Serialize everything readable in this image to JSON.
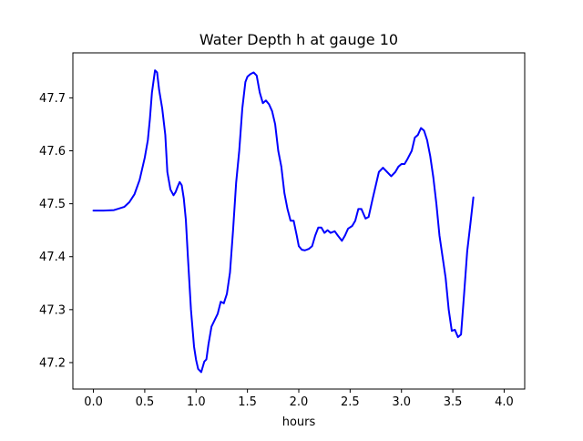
{
  "chart_data": {
    "type": "line",
    "title": "Water Depth h at gauge 10",
    "xlabel": "hours",
    "ylabel": "",
    "xlim": [
      -0.2,
      4.2
    ],
    "ylim": [
      47.15,
      47.785
    ],
    "x_ticks": [
      0.0,
      0.5,
      1.0,
      1.5,
      2.0,
      2.5,
      3.0,
      3.5,
      4.0
    ],
    "x_tick_labels": [
      "0.0",
      "0.5",
      "1.0",
      "1.5",
      "2.0",
      "2.5",
      "3.0",
      "3.5",
      "4.0"
    ],
    "y_ticks": [
      47.2,
      47.3,
      47.4,
      47.5,
      47.6,
      47.7
    ],
    "y_tick_labels": [
      "47.2",
      "47.3",
      "47.4",
      "47.5",
      "47.6",
      "47.7"
    ],
    "grid": false,
    "series": [
      {
        "color": "#0000ff",
        "points": [
          [
            0.0,
            47.487
          ],
          [
            0.1,
            47.487
          ],
          [
            0.2,
            47.488
          ],
          [
            0.3,
            47.494
          ],
          [
            0.35,
            47.503
          ],
          [
            0.4,
            47.518
          ],
          [
            0.45,
            47.545
          ],
          [
            0.5,
            47.587
          ],
          [
            0.53,
            47.62
          ],
          [
            0.55,
            47.66
          ],
          [
            0.57,
            47.71
          ],
          [
            0.6,
            47.752
          ],
          [
            0.62,
            47.748
          ],
          [
            0.64,
            47.715
          ],
          [
            0.67,
            47.68
          ],
          [
            0.7,
            47.63
          ],
          [
            0.72,
            47.56
          ],
          [
            0.75,
            47.527
          ],
          [
            0.78,
            47.516
          ],
          [
            0.8,
            47.522
          ],
          [
            0.82,
            47.532
          ],
          [
            0.84,
            47.541
          ],
          [
            0.86,
            47.535
          ],
          [
            0.88,
            47.51
          ],
          [
            0.9,
            47.47
          ],
          [
            0.92,
            47.4
          ],
          [
            0.95,
            47.3
          ],
          [
            0.98,
            47.23
          ],
          [
            1.0,
            47.205
          ],
          [
            1.02,
            47.188
          ],
          [
            1.05,
            47.182
          ],
          [
            1.08,
            47.202
          ],
          [
            1.1,
            47.206
          ],
          [
            1.12,
            47.234
          ],
          [
            1.15,
            47.268
          ],
          [
            1.18,
            47.28
          ],
          [
            1.21,
            47.292
          ],
          [
            1.24,
            47.315
          ],
          [
            1.27,
            47.312
          ],
          [
            1.3,
            47.33
          ],
          [
            1.33,
            47.37
          ],
          [
            1.36,
            47.45
          ],
          [
            1.39,
            47.54
          ],
          [
            1.42,
            47.6
          ],
          [
            1.45,
            47.68
          ],
          [
            1.48,
            47.73
          ],
          [
            1.5,
            47.74
          ],
          [
            1.53,
            47.745
          ],
          [
            1.56,
            47.748
          ],
          [
            1.59,
            47.742
          ],
          [
            1.62,
            47.71
          ],
          [
            1.65,
            47.69
          ],
          [
            1.68,
            47.695
          ],
          [
            1.71,
            47.688
          ],
          [
            1.74,
            47.675
          ],
          [
            1.77,
            47.65
          ],
          [
            1.8,
            47.6
          ],
          [
            1.83,
            47.57
          ],
          [
            1.86,
            47.52
          ],
          [
            1.89,
            47.49
          ],
          [
            1.92,
            47.468
          ],
          [
            1.95,
            47.468
          ],
          [
            1.98,
            47.44
          ],
          [
            2.0,
            47.42
          ],
          [
            2.03,
            47.413
          ],
          [
            2.06,
            47.412
          ],
          [
            2.1,
            47.415
          ],
          [
            2.13,
            47.42
          ],
          [
            2.16,
            47.44
          ],
          [
            2.19,
            47.455
          ],
          [
            2.22,
            47.455
          ],
          [
            2.25,
            47.445
          ],
          [
            2.28,
            47.45
          ],
          [
            2.31,
            47.445
          ],
          [
            2.35,
            47.448
          ],
          [
            2.38,
            47.44
          ],
          [
            2.42,
            47.43
          ],
          [
            2.45,
            47.44
          ],
          [
            2.48,
            47.453
          ],
          [
            2.52,
            47.458
          ],
          [
            2.55,
            47.468
          ],
          [
            2.58,
            47.49
          ],
          [
            2.61,
            47.49
          ],
          [
            2.65,
            47.472
          ],
          [
            2.68,
            47.475
          ],
          [
            2.72,
            47.51
          ],
          [
            2.75,
            47.535
          ],
          [
            2.78,
            47.56
          ],
          [
            2.82,
            47.568
          ],
          [
            2.86,
            47.56
          ],
          [
            2.9,
            47.552
          ],
          [
            2.94,
            47.56
          ],
          [
            2.97,
            47.57
          ],
          [
            3.0,
            47.575
          ],
          [
            3.03,
            47.575
          ],
          [
            3.06,
            47.585
          ],
          [
            3.1,
            47.6
          ],
          [
            3.13,
            47.625
          ],
          [
            3.16,
            47.63
          ],
          [
            3.19,
            47.643
          ],
          [
            3.22,
            47.638
          ],
          [
            3.25,
            47.62
          ],
          [
            3.28,
            47.59
          ],
          [
            3.31,
            47.55
          ],
          [
            3.34,
            47.5
          ],
          [
            3.37,
            47.44
          ],
          [
            3.4,
            47.4
          ],
          [
            3.43,
            47.36
          ],
          [
            3.46,
            47.3
          ],
          [
            3.49,
            47.26
          ],
          [
            3.52,
            47.262
          ],
          [
            3.55,
            47.248
          ],
          [
            3.58,
            47.253
          ],
          [
            3.61,
            47.33
          ],
          [
            3.64,
            47.41
          ],
          [
            3.67,
            47.46
          ],
          [
            3.7,
            47.512
          ]
        ]
      }
    ]
  }
}
